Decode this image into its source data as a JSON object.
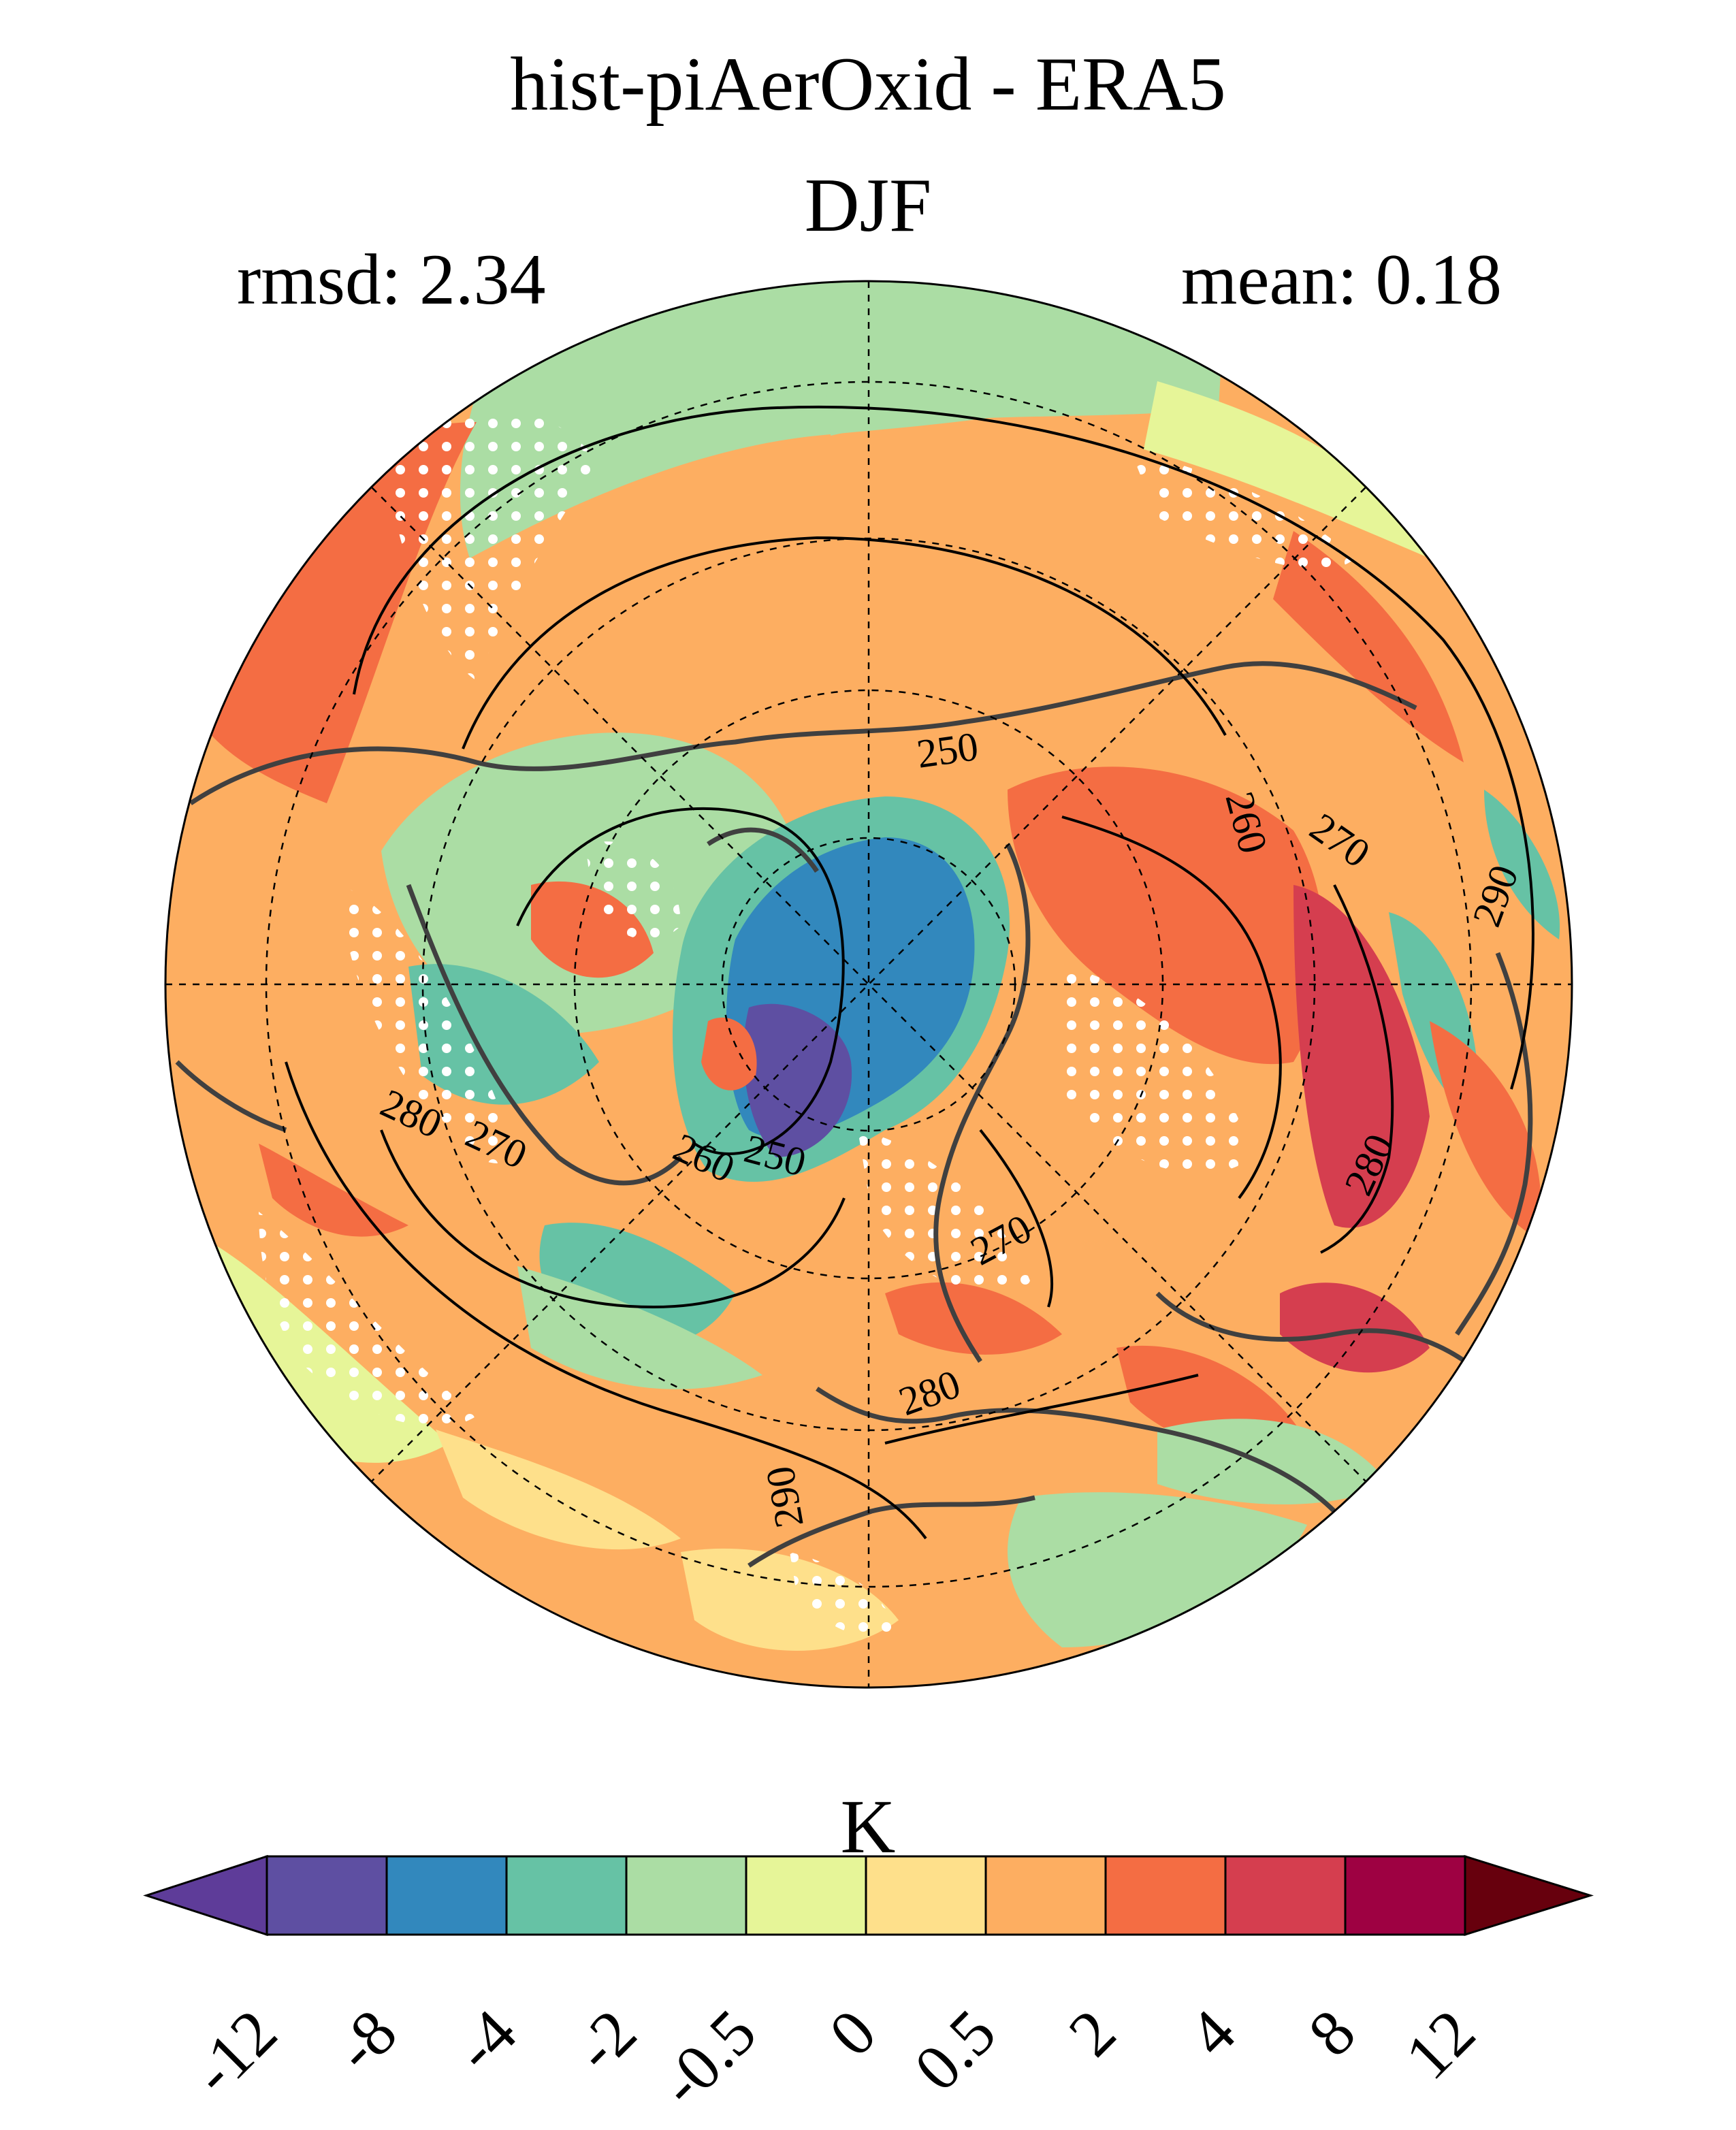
{
  "title": "hist-piAerOxid - ERA5",
  "season": "DJF",
  "stats": {
    "rmsd": "rmsd: 2.34",
    "mean": "mean: 0.18"
  },
  "colorbar": {
    "units": "K",
    "ticks": [
      "-12",
      "-8",
      "-4",
      "-2",
      "-0.5",
      "0",
      "0.5",
      "2",
      "4",
      "8",
      "12"
    ],
    "colors": [
      "#5e3c99",
      "#5e4fa2",
      "#3288bd",
      "#66c2a5",
      "#abdda4",
      "#e6f598",
      "#fee08b",
      "#fdae61",
      "#f46d43",
      "#d53e4f",
      "#9e0142",
      "#67000d"
    ],
    "extend": "both"
  },
  "map": {
    "projection": "north polar stereographic",
    "contour_labels": [
      "250",
      "260",
      "270",
      "280",
      "290",
      "250",
      "260",
      "270",
      "280",
      "290",
      "270",
      "280",
      "270",
      "280"
    ]
  }
}
